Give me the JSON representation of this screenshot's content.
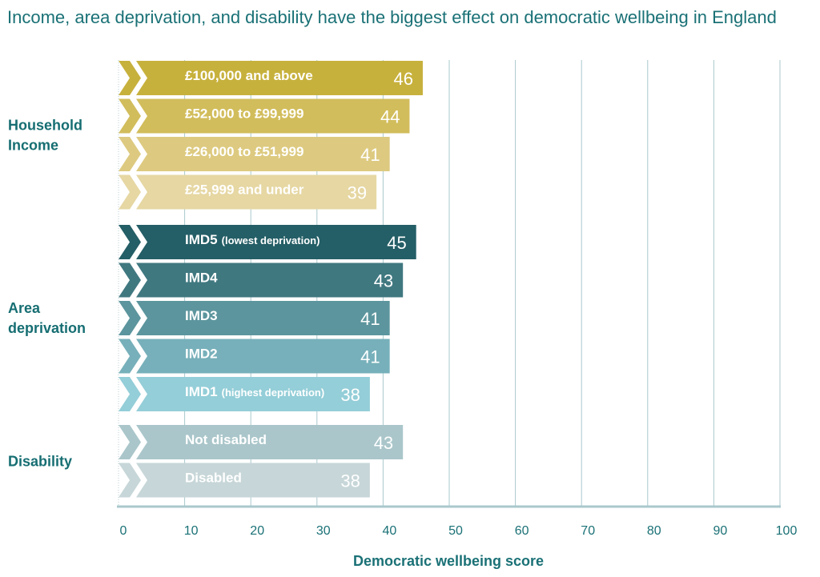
{
  "chart_data": {
    "type": "bar",
    "orientation": "horizontal",
    "title": "Income, area deprivation, and disability have the biggest effect on democratic wellbeing in England",
    "xlabel": "Democratic wellbeing score",
    "ylabel": "",
    "xlim": [
      0,
      100
    ],
    "xticks": [
      0,
      10,
      20,
      30,
      40,
      50,
      60,
      70,
      80,
      90,
      100
    ],
    "grid": true,
    "groups": [
      {
        "name": "Household Income",
        "name_lines": [
          "Household",
          "Income"
        ],
        "bars": [
          {
            "label": "£100,000 and above",
            "label_note": "",
            "value": 46,
            "color": "#c7b13d"
          },
          {
            "label": "£52,000 to £99,999",
            "label_note": "",
            "value": 44,
            "color": "#d2bd5c"
          },
          {
            "label": "£26,000 to £51,999",
            "label_note": "",
            "value": 41,
            "color": "#ddca80"
          },
          {
            "label": "£25,999 and under",
            "label_note": "",
            "value": 39,
            "color": "#e6d7a3"
          }
        ]
      },
      {
        "name": "Area deprivation",
        "name_lines": [
          "Area",
          "deprivation"
        ],
        "bars": [
          {
            "label": "IMD5",
            "label_note": "(lowest deprivation)",
            "value": 45,
            "color": "#245e66"
          },
          {
            "label": "IMD4",
            "label_note": "",
            "value": 43,
            "color": "#407880"
          },
          {
            "label": "IMD3",
            "label_note": "",
            "value": 41,
            "color": "#5c959d"
          },
          {
            "label": "IMD2",
            "label_note": "",
            "value": 41,
            "color": "#77b0ba"
          },
          {
            "label": "IMD1",
            "label_note": "(highest deprivation)",
            "value": 38,
            "color": "#94ced8"
          }
        ]
      },
      {
        "name": "Disability",
        "name_lines": [
          "Disability"
        ],
        "bars": [
          {
            "label": "Not disabled",
            "label_note": "",
            "value": 43,
            "color": "#aac6ca"
          },
          {
            "label": "Disabled",
            "label_note": "",
            "value": 38,
            "color": "#c7d6d8"
          }
        ]
      }
    ]
  }
}
